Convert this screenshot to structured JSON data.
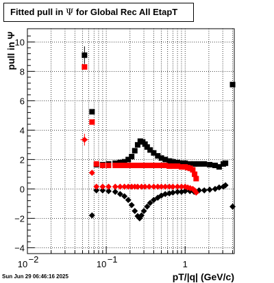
{
  "title": {
    "prefix": "Fitted pull in",
    "symbol": "Ψ",
    "suffix": "for Global Rec All EtapT"
  },
  "footer": "Sun Jun 29 06:46:16 2025",
  "chart_data": {
    "type": "scatter",
    "title": "Fitted pull in Ψ for Global Rec All EtapT",
    "xlabel": "pT/|q| (GeV/c)",
    "ylabel": "pull in Ψ",
    "xscale": "log",
    "xlim": [
      0.01,
      4.2
    ],
    "ylim": [
      -4.4,
      10.9
    ],
    "grid": true,
    "x_ticks": [
      {
        "value": 0.01,
        "base": "10",
        "exp": "−2"
      },
      {
        "value": 0.1,
        "base": "10",
        "exp": "−1"
      },
      {
        "value": 1,
        "base": "1",
        "exp": ""
      }
    ],
    "y_ticks": [
      -4,
      -2,
      0,
      2,
      4,
      6,
      8,
      10
    ],
    "y_tick_labels": [
      "−4",
      "−2",
      "0",
      "2",
      "4",
      "6",
      "8",
      "10"
    ],
    "series": [
      {
        "color": "#000000",
        "marker": "square",
        "points": [
          {
            "x": 0.053,
            "y": 9.1,
            "ey": 0.6
          },
          {
            "x": 0.066,
            "y": 5.25
          },
          {
            "x": 0.075,
            "y": 1.65
          },
          {
            "x": 0.09,
            "y": 1.65
          },
          {
            "x": 0.107,
            "y": 1.7
          },
          {
            "x": 0.13,
            "y": 1.75
          },
          {
            "x": 0.15,
            "y": 1.8
          },
          {
            "x": 0.17,
            "y": 1.85
          },
          {
            "x": 0.19,
            "y": 2.0
          },
          {
            "x": 0.21,
            "y": 2.2
          },
          {
            "x": 0.23,
            "y": 2.6
          },
          {
            "x": 0.25,
            "y": 3.0
          },
          {
            "x": 0.27,
            "y": 3.25
          },
          {
            "x": 0.29,
            "y": 3.2
          },
          {
            "x": 0.31,
            "y": 3.05
          },
          {
            "x": 0.33,
            "y": 2.85
          },
          {
            "x": 0.36,
            "y": 2.65
          },
          {
            "x": 0.4,
            "y": 2.45
          },
          {
            "x": 0.45,
            "y": 2.25
          },
          {
            "x": 0.5,
            "y": 2.1
          },
          {
            "x": 0.56,
            "y": 2.0
          },
          {
            "x": 0.63,
            "y": 1.9
          },
          {
            "x": 0.7,
            "y": 1.85
          },
          {
            "x": 0.8,
            "y": 1.8
          },
          {
            "x": 0.9,
            "y": 1.75
          },
          {
            "x": 1.0,
            "y": 1.75
          },
          {
            "x": 1.15,
            "y": 1.7
          },
          {
            "x": 1.3,
            "y": 1.7
          },
          {
            "x": 1.5,
            "y": 1.7
          },
          {
            "x": 1.75,
            "y": 1.7
          },
          {
            "x": 2.05,
            "y": 1.65
          },
          {
            "x": 2.4,
            "y": 1.6
          },
          {
            "x": 2.7,
            "y": 1.5
          },
          {
            "x": 3.05,
            "y": 1.7
          },
          {
            "x": 3.25,
            "y": 1.75
          },
          {
            "x": 4.0,
            "y": 7.1
          }
        ]
      },
      {
        "color": "#ff0000",
        "marker": "square",
        "points": [
          {
            "x": 0.053,
            "y": 8.3
          },
          {
            "x": 0.066,
            "y": 4.55
          },
          {
            "x": 0.075,
            "y": 1.7
          },
          {
            "x": 0.09,
            "y": 1.6
          },
          {
            "x": 0.107,
            "y": 1.6
          },
          {
            "x": 0.13,
            "y": 1.6
          },
          {
            "x": 0.15,
            "y": 1.6
          },
          {
            "x": 0.17,
            "y": 1.6
          },
          {
            "x": 0.19,
            "y": 1.6
          },
          {
            "x": 0.21,
            "y": 1.6
          },
          {
            "x": 0.23,
            "y": 1.6
          },
          {
            "x": 0.25,
            "y": 1.6
          },
          {
            "x": 0.28,
            "y": 1.6
          },
          {
            "x": 0.31,
            "y": 1.6
          },
          {
            "x": 0.35,
            "y": 1.6
          },
          {
            "x": 0.4,
            "y": 1.6
          },
          {
            "x": 0.45,
            "y": 1.6
          },
          {
            "x": 0.5,
            "y": 1.6
          },
          {
            "x": 0.56,
            "y": 1.6
          },
          {
            "x": 0.63,
            "y": 1.55
          },
          {
            "x": 0.7,
            "y": 1.55
          },
          {
            "x": 0.8,
            "y": 1.55
          },
          {
            "x": 0.9,
            "y": 1.5
          },
          {
            "x": 1.0,
            "y": 1.5
          },
          {
            "x": 1.08,
            "y": 1.45
          },
          {
            "x": 1.16,
            "y": 1.4
          },
          {
            "x": 1.25,
            "y": 1.3
          },
          {
            "x": 1.32,
            "y": 1.0
          },
          {
            "x": 1.38,
            "y": 0.7
          }
        ]
      },
      {
        "color": "#000000",
        "marker": "diamond",
        "points": [
          {
            "x": 0.066,
            "y": -1.8
          },
          {
            "x": 0.075,
            "y": -0.1
          },
          {
            "x": 0.09,
            "y": -0.1
          },
          {
            "x": 0.107,
            "y": -0.15
          },
          {
            "x": 0.13,
            "y": -0.2
          },
          {
            "x": 0.15,
            "y": -0.35
          },
          {
            "x": 0.17,
            "y": -0.5
          },
          {
            "x": 0.19,
            "y": -0.75
          },
          {
            "x": 0.21,
            "y": -1.1
          },
          {
            "x": 0.23,
            "y": -1.5
          },
          {
            "x": 0.25,
            "y": -1.85
          },
          {
            "x": 0.265,
            "y": -2.0
          },
          {
            "x": 0.28,
            "y": -1.8
          },
          {
            "x": 0.3,
            "y": -1.5
          },
          {
            "x": 0.33,
            "y": -1.2
          },
          {
            "x": 0.36,
            "y": -0.95
          },
          {
            "x": 0.4,
            "y": -0.75
          },
          {
            "x": 0.45,
            "y": -0.6
          },
          {
            "x": 0.5,
            "y": -0.45
          },
          {
            "x": 0.56,
            "y": -0.35
          },
          {
            "x": 0.63,
            "y": -0.3
          },
          {
            "x": 0.7,
            "y": -0.25
          },
          {
            "x": 0.8,
            "y": -0.2
          },
          {
            "x": 0.9,
            "y": -0.2
          },
          {
            "x": 1.0,
            "y": -0.15
          },
          {
            "x": 1.15,
            "y": -0.15
          },
          {
            "x": 1.3,
            "y": -0.2
          },
          {
            "x": 1.5,
            "y": -0.1
          },
          {
            "x": 1.75,
            "y": -0.1
          },
          {
            "x": 2.05,
            "y": -0.05
          },
          {
            "x": 2.4,
            "y": 0.0
          },
          {
            "x": 2.7,
            "y": 0.1
          },
          {
            "x": 3.05,
            "y": 0.15
          },
          {
            "x": 3.25,
            "y": 0.25
          },
          {
            "x": 4.0,
            "y": -1.2
          }
        ]
      },
      {
        "color": "#ff0000",
        "marker": "diamond",
        "points": [
          {
            "x": 0.053,
            "y": 3.35,
            "ex": 0.006,
            "ey": 0.4
          },
          {
            "x": 0.066,
            "y": 1.1
          },
          {
            "x": 0.075,
            "y": 0.15
          },
          {
            "x": 0.09,
            "y": 0.15
          },
          {
            "x": 0.107,
            "y": 0.15
          },
          {
            "x": 0.13,
            "y": 0.15
          },
          {
            "x": 0.15,
            "y": 0.15
          },
          {
            "x": 0.17,
            "y": 0.15
          },
          {
            "x": 0.19,
            "y": 0.15
          },
          {
            "x": 0.21,
            "y": 0.15
          },
          {
            "x": 0.23,
            "y": 0.15
          },
          {
            "x": 0.25,
            "y": 0.15
          },
          {
            "x": 0.28,
            "y": 0.15
          },
          {
            "x": 0.31,
            "y": 0.15
          },
          {
            "x": 0.35,
            "y": 0.15
          },
          {
            "x": 0.4,
            "y": 0.15
          },
          {
            "x": 0.45,
            "y": 0.15
          },
          {
            "x": 0.5,
            "y": 0.15
          },
          {
            "x": 0.56,
            "y": 0.15
          },
          {
            "x": 0.63,
            "y": 0.15
          },
          {
            "x": 0.7,
            "y": 0.15
          },
          {
            "x": 0.8,
            "y": 0.15
          },
          {
            "x": 0.9,
            "y": 0.15
          },
          {
            "x": 1.0,
            "y": 0.15
          },
          {
            "x": 1.08,
            "y": 0.1
          },
          {
            "x": 1.16,
            "y": 0.05
          },
          {
            "x": 1.25,
            "y": 0.0
          },
          {
            "x": 1.32,
            "y": -0.1
          },
          {
            "x": 1.38,
            "y": -0.25
          }
        ]
      }
    ]
  }
}
